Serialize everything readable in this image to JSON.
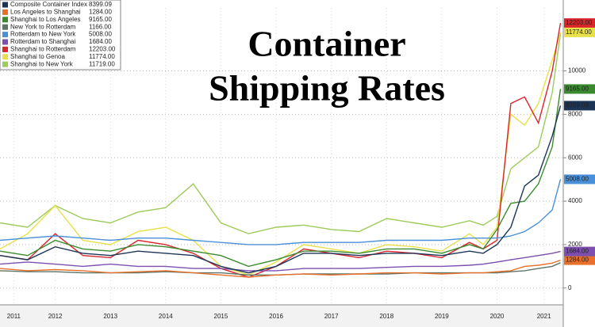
{
  "chart_data": {
    "type": "line",
    "title": "Container Shipping Rates",
    "x": [
      2011.5,
      2012,
      2012.5,
      2013,
      2013.5,
      2014,
      2014.5,
      2015,
      2015.5,
      2016,
      2016.5,
      2017,
      2017.5,
      2018,
      2018.5,
      2019,
      2019.5,
      2020,
      2020.25,
      2020.5,
      2020.75,
      2021,
      2021.25,
      2021.5,
      2021.65
    ],
    "xlim": [
      2011.5,
      2021.7
    ],
    "xticks": [
      {
        "value": 2011.75,
        "label": "2011"
      },
      {
        "value": 2012.5,
        "label": "2012"
      },
      {
        "value": 2013.5,
        "label": "2013"
      },
      {
        "value": 2014.5,
        "label": "2014"
      },
      {
        "value": 2015.5,
        "label": "2015"
      },
      {
        "value": 2016.5,
        "label": "2016"
      },
      {
        "value": 2017.5,
        "label": "2017"
      },
      {
        "value": 2018.5,
        "label": "2018"
      },
      {
        "value": 2019.5,
        "label": "2019"
      },
      {
        "value": 2020.5,
        "label": "2020"
      },
      {
        "value": 2021.35,
        "label": "2021"
      }
    ],
    "ylim": [
      -700,
      12900
    ],
    "yticks": [
      0,
      2000,
      4000,
      6000,
      8000,
      10000
    ],
    "grid": true,
    "series": [
      {
        "name": "Composite Container Index",
        "color": "#1c3557",
        "tagged": true,
        "values": [
          1500,
          1300,
          1900,
          1600,
          1500,
          1700,
          1600,
          1500,
          1000,
          700,
          1000,
          1600,
          1600,
          1500,
          1600,
          1600,
          1500,
          1700,
          1600,
          2000,
          2800,
          4700,
          5200,
          7000,
          8399.09
        ],
        "value_labels": [
          null,
          null,
          null,
          null,
          null,
          null,
          null,
          null,
          null,
          null,
          null,
          null,
          null,
          null,
          null,
          null,
          null,
          null,
          null,
          null,
          null,
          null,
          null,
          null,
          "8399.09"
        ]
      },
      {
        "name": "Los Angeles to Shanghai",
        "color": "#e8702a",
        "tagged": true,
        "values": [
          900,
          800,
          850,
          800,
          700,
          750,
          800,
          700,
          600,
          500,
          600,
          650,
          600,
          650,
          700,
          700,
          650,
          700,
          700,
          750,
          800,
          1000,
          1050,
          1150,
          1284
        ],
        "value_labels": [
          null,
          null,
          null,
          null,
          null,
          null,
          null,
          null,
          null,
          null,
          null,
          null,
          null,
          null,
          null,
          null,
          null,
          null,
          null,
          null,
          null,
          null,
          null,
          null,
          "1284.00"
        ]
      },
      {
        "name": "Shanghai to Los Angeles",
        "color": "#3a8a2e",
        "tagged": true,
        "values": [
          1700,
          1500,
          2200,
          1800,
          1700,
          2000,
          1900,
          1700,
          1500,
          1000,
          1300,
          1700,
          1700,
          1600,
          1800,
          1800,
          1600,
          2000,
          1800,
          2700,
          3900,
          4000,
          4800,
          6500,
          9165
        ],
        "value_labels": [
          null,
          null,
          null,
          null,
          null,
          null,
          null,
          null,
          null,
          null,
          null,
          null,
          null,
          null,
          null,
          null,
          null,
          null,
          null,
          null,
          null,
          null,
          null,
          null,
          "9165.00"
        ]
      },
      {
        "name": "New York to Rotterdam",
        "color": "#5e7568",
        "tagged": false,
        "values": [
          800,
          750,
          750,
          700,
          700,
          700,
          750,
          700,
          700,
          600,
          600,
          650,
          650,
          650,
          650,
          700,
          700,
          700,
          700,
          700,
          750,
          800,
          900,
          1000,
          1166
        ],
        "value_labels": [
          null,
          null,
          null,
          null,
          null,
          null,
          null,
          null,
          null,
          null,
          null,
          null,
          null,
          null,
          null,
          null,
          null,
          null,
          null,
          null,
          null,
          null,
          null,
          null,
          "1166.00"
        ]
      },
      {
        "name": "Rotterdam to New York",
        "color": "#4a90d9",
        "tagged": true,
        "values": [
          2200,
          2300,
          2400,
          2300,
          2200,
          2300,
          2300,
          2200,
          2100,
          2000,
          2000,
          2100,
          2100,
          2100,
          2200,
          2200,
          2200,
          2300,
          2300,
          2300,
          2400,
          2600,
          3000,
          3600,
          5008
        ],
        "value_labels": [
          null,
          null,
          null,
          null,
          null,
          null,
          null,
          null,
          null,
          null,
          null,
          null,
          null,
          null,
          null,
          null,
          null,
          null,
          null,
          null,
          null,
          null,
          null,
          null,
          "5008.00"
        ]
      },
      {
        "name": "Rotterdam to Shanghai",
        "color": "#7d4fb0",
        "tagged": true,
        "values": [
          1100,
          1200,
          1100,
          1000,
          1100,
          1000,
          1000,
          900,
          900,
          800,
          800,
          900,
          900,
          900,
          950,
          1000,
          1000,
          1050,
          1100,
          1200,
          1300,
          1400,
          1500,
          1600,
          1684
        ],
        "value_labels": [
          null,
          null,
          null,
          null,
          null,
          null,
          null,
          null,
          null,
          null,
          null,
          null,
          null,
          null,
          null,
          null,
          null,
          null,
          null,
          null,
          null,
          null,
          null,
          null,
          "1684.00"
        ]
      },
      {
        "name": "Shanghai to Rotterdam",
        "color": "#d9262b",
        "tagged": true,
        "values": [
          1500,
          1300,
          2500,
          1500,
          1400,
          2200,
          2000,
          1600,
          900,
          500,
          1000,
          1800,
          1600,
          1400,
          1700,
          1600,
          1400,
          2100,
          1800,
          2200,
          8500,
          8800,
          7600,
          10000,
          12203
        ],
        "value_labels": [
          null,
          null,
          null,
          null,
          null,
          null,
          null,
          null,
          null,
          null,
          null,
          null,
          null,
          null,
          null,
          null,
          null,
          null,
          null,
          null,
          null,
          null,
          null,
          null,
          "12203.00"
        ]
      },
      {
        "name": "Shanghai to Genoa",
        "color": "#e8e048",
        "tagged": true,
        "values": [
          1800,
          2500,
          3800,
          2200,
          2000,
          2600,
          2800,
          2200,
          1000,
          600,
          1200,
          2000,
          1800,
          1600,
          2000,
          1900,
          1700,
          2500,
          2000,
          2800,
          8000,
          7500,
          8500,
          10500,
          11774
        ],
        "value_labels": [
          null,
          null,
          null,
          null,
          null,
          null,
          null,
          null,
          null,
          null,
          null,
          null,
          null,
          null,
          null,
          null,
          null,
          null,
          null,
          null,
          null,
          null,
          null,
          null,
          "11774.00"
        ]
      },
      {
        "name": "Shanghai to New York",
        "color": "#9ccc5a",
        "tagged": false,
        "values": [
          3000,
          2800,
          3800,
          3200,
          3000,
          3500,
          3700,
          4800,
          3000,
          2500,
          2800,
          2900,
          2700,
          2600,
          3200,
          3000,
          2800,
          3100,
          2900,
          3300,
          5500,
          6000,
          6500,
          9000,
          11719
        ],
        "value_labels": [
          null,
          null,
          null,
          null,
          null,
          null,
          null,
          null,
          null,
          null,
          null,
          null,
          null,
          null,
          null,
          null,
          null,
          null,
          null,
          null,
          null,
          null,
          null,
          null,
          "11719.00"
        ]
      }
    ]
  }
}
